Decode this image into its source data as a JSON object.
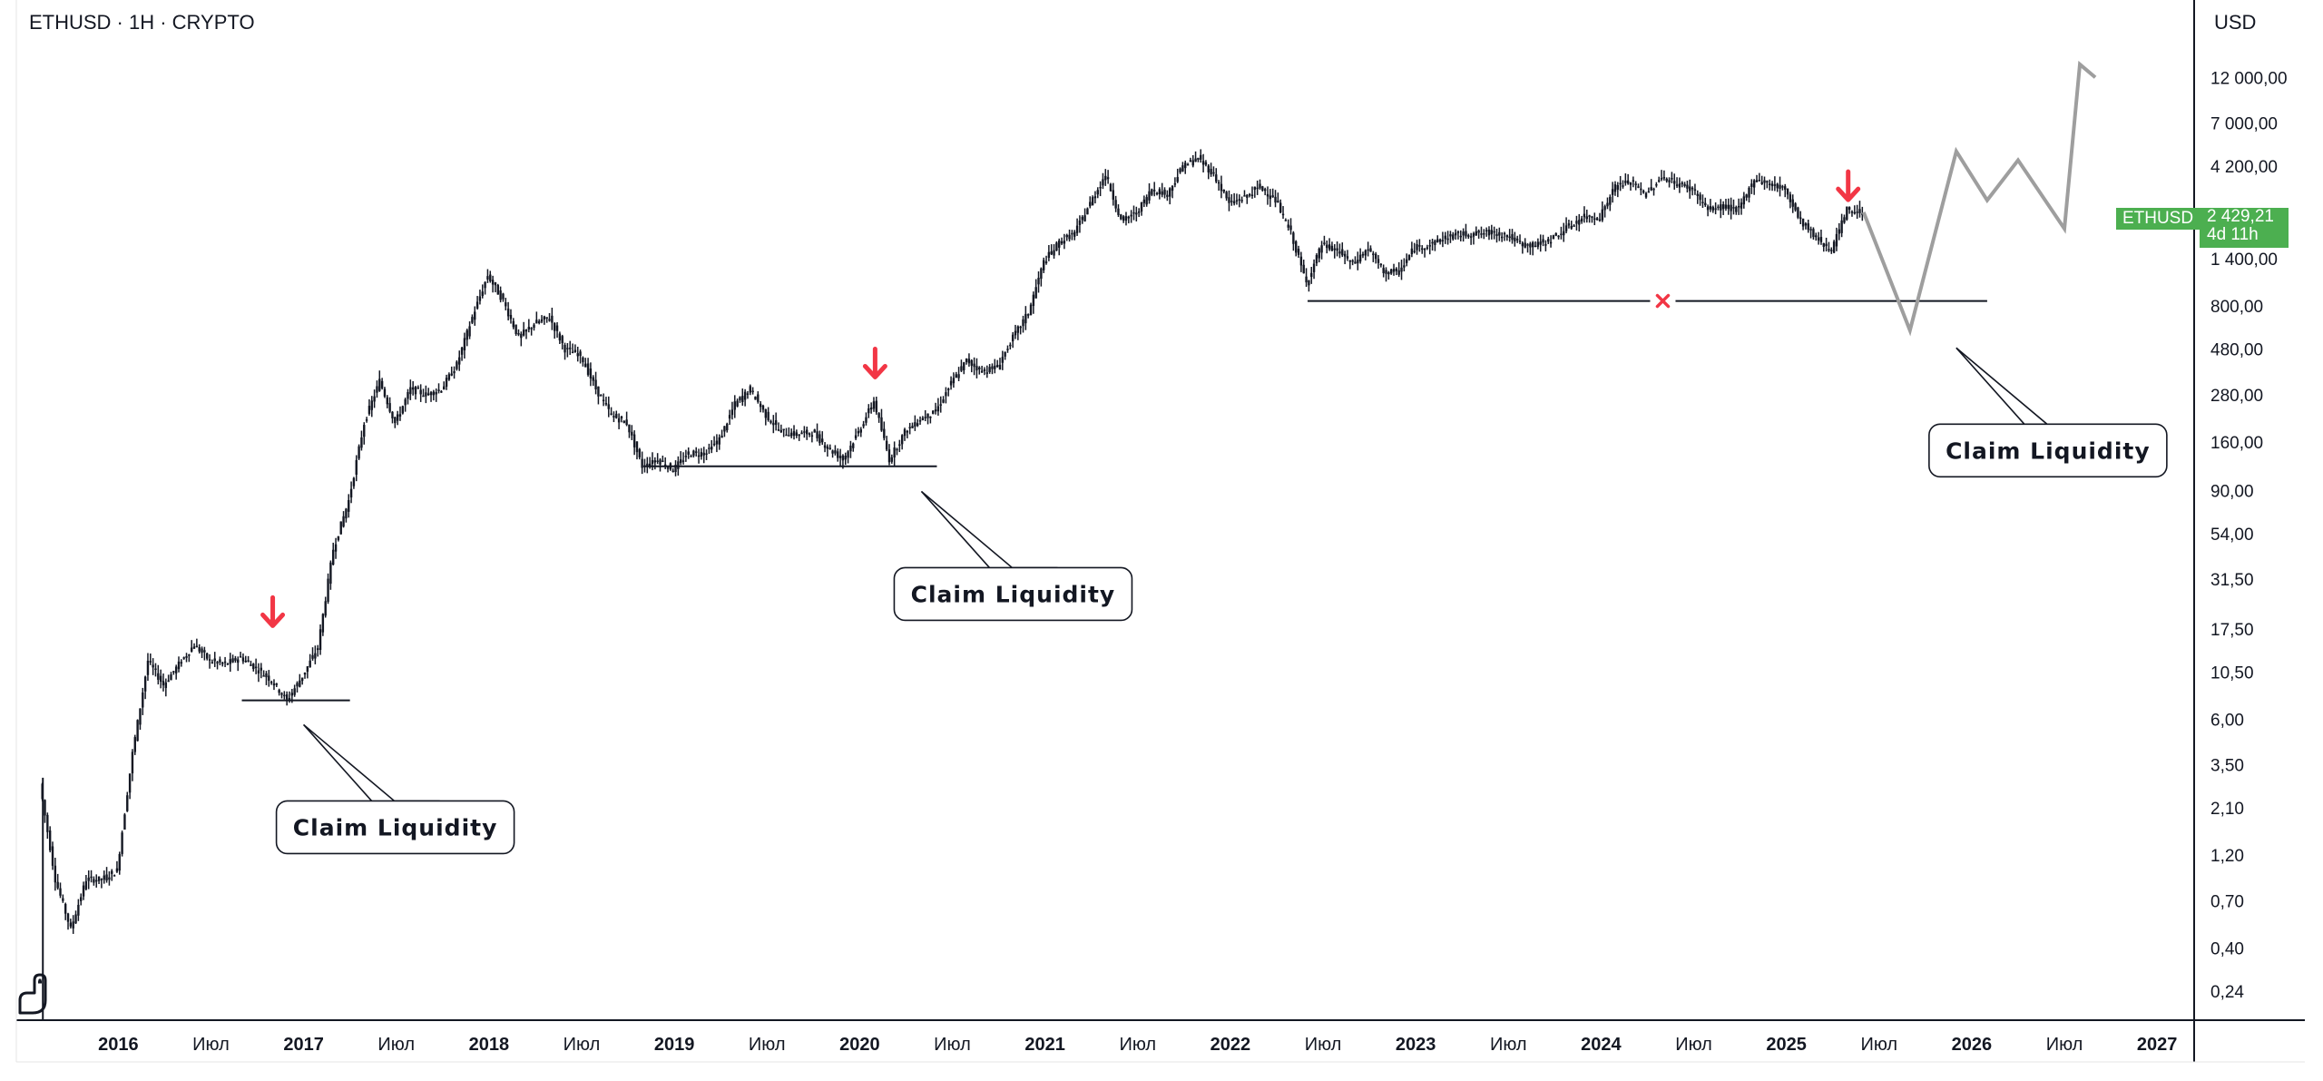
{
  "header": {
    "symbol_line": "ETHUSD · 1H · CRYPTO",
    "currency": "USD"
  },
  "price_tag": {
    "symbol": "ETHUSD",
    "price": "2 429,21",
    "countdown": "4d 11h",
    "color": "#4caf50"
  },
  "colors": {
    "candle": "#131722",
    "arrow": "#f23645",
    "projection": "#9e9e9e",
    "cross": "#f23645"
  },
  "logo_icon": "tradingview-dino-icon",
  "chart_data": {
    "type": "line",
    "title": "ETHUSD · 1H · CRYPTO",
    "y_scale": "log",
    "y_ticks": [
      {
        "v": 12000,
        "label": "12 000,00"
      },
      {
        "v": 7000,
        "label": "7 000,00"
      },
      {
        "v": 4200,
        "label": "4 200,00"
      },
      {
        "v": 1400,
        "label": "1 400,00"
      },
      {
        "v": 800,
        "label": "800,00"
      },
      {
        "v": 480,
        "label": "480,00"
      },
      {
        "v": 280,
        "label": "280,00"
      },
      {
        "v": 160,
        "label": "160,00"
      },
      {
        "v": 90,
        "label": "90,00"
      },
      {
        "v": 54,
        "label": "54,00"
      },
      {
        "v": 31.5,
        "label": "31,50"
      },
      {
        "v": 17.5,
        "label": "17,50"
      },
      {
        "v": 10.5,
        "label": "10,50"
      },
      {
        "v": 6,
        "label": "6,00"
      },
      {
        "v": 3.5,
        "label": "3,50"
      },
      {
        "v": 2.1,
        "label": "2,10"
      },
      {
        "v": 1.2,
        "label": "1,20"
      },
      {
        "v": 0.7,
        "label": "0,70"
      },
      {
        "v": 0.4,
        "label": "0,40"
      },
      {
        "v": 0.24,
        "label": "0,24"
      }
    ],
    "x_ticks": [
      {
        "t": "2016-01",
        "label": "2016",
        "bold": true
      },
      {
        "t": "2016-07",
        "label": "Июл",
        "bold": false
      },
      {
        "t": "2017-01",
        "label": "2017",
        "bold": true
      },
      {
        "t": "2017-07",
        "label": "Июл",
        "bold": false
      },
      {
        "t": "2018-01",
        "label": "2018",
        "bold": true
      },
      {
        "t": "2018-07",
        "label": "Июл",
        "bold": false
      },
      {
        "t": "2019-01",
        "label": "2019",
        "bold": true
      },
      {
        "t": "2019-07",
        "label": "Июл",
        "bold": false
      },
      {
        "t": "2020-01",
        "label": "2020",
        "bold": true
      },
      {
        "t": "2020-07",
        "label": "Июл",
        "bold": false
      },
      {
        "t": "2021-01",
        "label": "2021",
        "bold": true
      },
      {
        "t": "2021-07",
        "label": "Июл",
        "bold": false
      },
      {
        "t": "2022-01",
        "label": "2022",
        "bold": true
      },
      {
        "t": "2022-07",
        "label": "Июл",
        "bold": false
      },
      {
        "t": "2023-01",
        "label": "2023",
        "bold": true
      },
      {
        "t": "2023-07",
        "label": "Июл",
        "bold": false
      },
      {
        "t": "2024-01",
        "label": "2024",
        "bold": true
      },
      {
        "t": "2024-07",
        "label": "Июл",
        "bold": false
      },
      {
        "t": "2025-01",
        "label": "2025",
        "bold": true
      },
      {
        "t": "2025-07",
        "label": "Июл",
        "bold": false
      },
      {
        "t": "2026-01",
        "label": "2026",
        "bold": true
      },
      {
        "t": "2026-07",
        "label": "Июл",
        "bold": false
      },
      {
        "t": "2027-01",
        "label": "2027",
        "bold": true
      }
    ],
    "series": [
      {
        "values": [
          [
            "2015-08",
            2.8
          ],
          [
            "2015-09",
            0.9
          ],
          [
            "2015-10",
            0.5
          ],
          [
            "2015-11",
            0.9
          ],
          [
            "2015-12",
            0.9
          ],
          [
            "2016-01",
            1.0
          ],
          [
            "2016-02",
            4.0
          ],
          [
            "2016-03",
            12.0
          ],
          [
            "2016-04",
            9.0
          ],
          [
            "2016-05",
            11.5
          ],
          [
            "2016-06",
            14.5
          ],
          [
            "2016-07",
            12.0
          ],
          [
            "2016-08",
            11.5
          ],
          [
            "2016-09",
            12.5
          ],
          [
            "2016-10",
            11.0
          ],
          [
            "2016-11",
            9.5
          ],
          [
            "2016-12",
            7.5
          ],
          [
            "2017-01",
            10.0
          ],
          [
            "2017-02",
            14.0
          ],
          [
            "2017-03",
            45.0
          ],
          [
            "2017-04",
            80.0
          ],
          [
            "2017-05",
            200.0
          ],
          [
            "2017-06",
            330.0
          ],
          [
            "2017-07",
            200.0
          ],
          [
            "2017-08",
            300.0
          ],
          [
            "2017-09",
            280.0
          ],
          [
            "2017-10",
            300.0
          ],
          [
            "2017-11",
            400.0
          ],
          [
            "2017-12",
            700.0
          ],
          [
            "2018-01",
            1150.0
          ],
          [
            "2018-02",
            850.0
          ],
          [
            "2018-03",
            550.0
          ],
          [
            "2018-04",
            650.0
          ],
          [
            "2018-05",
            700.0
          ],
          [
            "2018-06",
            480.0
          ],
          [
            "2018-07",
            450.0
          ],
          [
            "2018-08",
            300.0
          ],
          [
            "2018-09",
            220.0
          ],
          [
            "2018-10",
            200.0
          ],
          [
            "2018-11",
            120.0
          ],
          [
            "2018-12",
            130.0
          ],
          [
            "2019-01",
            115.0
          ],
          [
            "2019-02",
            140.0
          ],
          [
            "2019-03",
            140.0
          ],
          [
            "2019-04",
            165.0
          ],
          [
            "2019-05",
            250.0
          ],
          [
            "2019-06",
            300.0
          ],
          [
            "2019-07",
            220.0
          ],
          [
            "2019-08",
            180.0
          ],
          [
            "2019-09",
            175.0
          ],
          [
            "2019-10",
            180.0
          ],
          [
            "2019-11",
            150.0
          ],
          [
            "2019-12",
            130.0
          ],
          [
            "2020-01",
            180.0
          ],
          [
            "2020-02",
            260.0
          ],
          [
            "2020-03",
            130.0
          ],
          [
            "2020-04",
            180.0
          ],
          [
            "2020-05",
            210.0
          ],
          [
            "2020-06",
            230.0
          ],
          [
            "2020-07",
            320.0
          ],
          [
            "2020-08",
            420.0
          ],
          [
            "2020-09",
            370.0
          ],
          [
            "2020-10",
            390.0
          ],
          [
            "2020-11",
            550.0
          ],
          [
            "2020-12",
            740.0
          ],
          [
            "2021-01",
            1350.0
          ],
          [
            "2021-02",
            1700.0
          ],
          [
            "2021-03",
            1900.0
          ],
          [
            "2021-04",
            2700.0
          ],
          [
            "2021-05",
            3800.0
          ],
          [
            "2021-06",
            2200.0
          ],
          [
            "2021-07",
            2400.0
          ],
          [
            "2021-08",
            3200.0
          ],
          [
            "2021-09",
            3000.0
          ],
          [
            "2021-10",
            4200.0
          ],
          [
            "2021-11",
            4600.0
          ],
          [
            "2021-12",
            3800.0
          ],
          [
            "2022-01",
            2700.0
          ],
          [
            "2022-02",
            2900.0
          ],
          [
            "2022-03",
            3300.0
          ],
          [
            "2022-04",
            2800.0
          ],
          [
            "2022-05",
            1900.0
          ],
          [
            "2022-06",
            1050.0
          ],
          [
            "2022-07",
            1650.0
          ],
          [
            "2022-08",
            1550.0
          ],
          [
            "2022-09",
            1320.0
          ],
          [
            "2022-10",
            1580.0
          ],
          [
            "2022-11",
            1200.0
          ],
          [
            "2022-12",
            1200.0
          ],
          [
            "2023-01",
            1600.0
          ],
          [
            "2023-02",
            1650.0
          ],
          [
            "2023-03",
            1800.0
          ],
          [
            "2023-04",
            1870.0
          ],
          [
            "2023-05",
            1880.0
          ],
          [
            "2023-06",
            1920.0
          ],
          [
            "2023-07",
            1850.0
          ],
          [
            "2023-08",
            1650.0
          ],
          [
            "2023-09",
            1650.0
          ],
          [
            "2023-10",
            1800.0
          ],
          [
            "2023-11",
            2050.0
          ],
          [
            "2023-12",
            2300.0
          ],
          [
            "2024-01",
            2300.0
          ],
          [
            "2024-02",
            3300.0
          ],
          [
            "2024-03",
            3500.0
          ],
          [
            "2024-04",
            3000.0
          ],
          [
            "2024-05",
            3700.0
          ],
          [
            "2024-06",
            3400.0
          ],
          [
            "2024-07",
            3200.0
          ],
          [
            "2024-08",
            2500.0
          ],
          [
            "2024-09",
            2600.0
          ],
          [
            "2024-10",
            2500.0
          ],
          [
            "2024-11",
            3600.0
          ],
          [
            "2024-12",
            3400.0
          ],
          [
            "2025-01",
            3200.0
          ],
          [
            "2025-02",
            2200.0
          ],
          [
            "2025-03",
            1800.0
          ],
          [
            "2025-04",
            1550.0
          ],
          [
            "2025-05",
            2500.0
          ],
          [
            "2025-06",
            2429.21
          ]
        ]
      }
    ],
    "projection": [
      [
        "2025-06",
        2429.21
      ],
      [
        "2025-09",
        600.0
      ],
      [
        "2025-12",
        5000.0
      ],
      [
        "2026-02",
        2800.0
      ],
      [
        "2026-04",
        4500.0
      ],
      [
        "2026-07",
        2000.0
      ],
      [
        "2026-08",
        14000.0
      ],
      [
        "2026-09",
        12000.0
      ]
    ],
    "levels": [
      {
        "from": "2016-09",
        "to": "2017-04",
        "value": 7.5
      },
      {
        "from": "2018-11",
        "to": "2020-06",
        "value": 120.0
      },
      {
        "from": "2022-06",
        "to": "2026-02",
        "value": 850.0
      }
    ],
    "down_arrows": [
      {
        "t": "2016-11",
        "value": 20.0
      },
      {
        "t": "2020-02",
        "value": 380.0
      },
      {
        "t": "2025-05",
        "value": 3100.0
      }
    ],
    "cross_marker": {
      "t": "2024-05",
      "value": 850.0
    },
    "annotations": [
      {
        "text": "Claim Liquidity",
        "anchor_t": "2017-01",
        "anchor_v": 6.0
      },
      {
        "text": "Claim Liquidity",
        "anchor_t": "2020-05",
        "anchor_v": 95.0
      },
      {
        "text": "Claim Liquidity",
        "anchor_t": "2025-12",
        "anchor_v": 520.0
      }
    ]
  }
}
